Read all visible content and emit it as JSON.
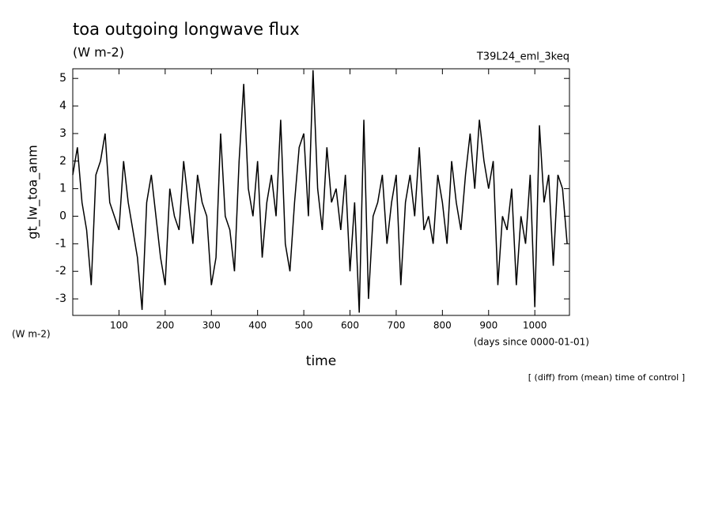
{
  "chart_data": {
    "type": "line",
    "title": "toa outgoing longwave flux",
    "subtitle": "(W m-2)",
    "run_label": "T39L24_eml_3keq",
    "y_label": "gt_lw_toa_anm",
    "y_units": "(W m-2)",
    "x_label": "time",
    "x_units": "(days since 0000-01-01)",
    "note": "[ (diff) from (mean) time of control ]",
    "color": "#000000",
    "xlim": [
      0,
      1075
    ],
    "ylim": [
      -3.6,
      5.35
    ],
    "xticks": [
      100,
      200,
      300,
      400,
      500,
      600,
      700,
      800,
      900,
      1000
    ],
    "yticks": [
      -3,
      -2,
      -1,
      0,
      1,
      2,
      3,
      4,
      5
    ],
    "x": [
      0,
      10,
      20,
      30,
      40,
      50,
      60,
      70,
      80,
      90,
      100,
      110,
      120,
      130,
      140,
      150,
      160,
      170,
      180,
      190,
      200,
      210,
      220,
      230,
      240,
      250,
      260,
      270,
      280,
      290,
      300,
      310,
      320,
      330,
      340,
      350,
      360,
      370,
      380,
      390,
      400,
      410,
      420,
      430,
      440,
      450,
      460,
      470,
      480,
      490,
      500,
      510,
      520,
      530,
      540,
      550,
      560,
      570,
      580,
      590,
      600,
      610,
      620,
      630,
      640,
      650,
      660,
      670,
      680,
      690,
      700,
      710,
      720,
      730,
      740,
      750,
      760,
      770,
      780,
      790,
      800,
      810,
      820,
      830,
      840,
      850,
      860,
      870,
      880,
      890,
      900,
      910,
      920,
      930,
      940,
      950,
      960,
      970,
      980,
      990,
      1000,
      1010,
      1020,
      1030,
      1040,
      1050,
      1060,
      1070
    ],
    "values": [
      1.5,
      2.5,
      0.5,
      -0.5,
      -2.5,
      1.5,
      2,
      3,
      0.5,
      0,
      -0.5,
      2,
      0.5,
      -0.5,
      -1.5,
      -3.4,
      0.5,
      1.5,
      0,
      -1.5,
      -2.5,
      1,
      0,
      -0.5,
      2,
      0.5,
      -1,
      1.5,
      0.5,
      0,
      -2.5,
      -1.5,
      3,
      0,
      -0.5,
      -2,
      2,
      4.8,
      1,
      0,
      2,
      -1.5,
      0.5,
      1.5,
      0,
      3.5,
      -1,
      -2,
      0.5,
      2.5,
      3,
      0,
      5.3,
      1,
      -0.5,
      2.5,
      0.5,
      1,
      -0.5,
      1.5,
      -2,
      0.5,
      -3.5,
      3.5,
      -3,
      0,
      0.5,
      1.5,
      -1,
      0.5,
      1.5,
      -2.5,
      0.5,
      1.5,
      0,
      2.5,
      -0.5,
      0,
      -1,
      1.5,
      0.5,
      -1,
      2,
      0.5,
      -0.5,
      1.5,
      3,
      1,
      3.5,
      2,
      1,
      2,
      -2.5,
      0,
      -0.5,
      1,
      -2.5,
      0,
      -1,
      1.5,
      -3.3,
      3.3,
      0.5,
      1.5,
      -1.8,
      1.5,
      1,
      -1
    ]
  }
}
